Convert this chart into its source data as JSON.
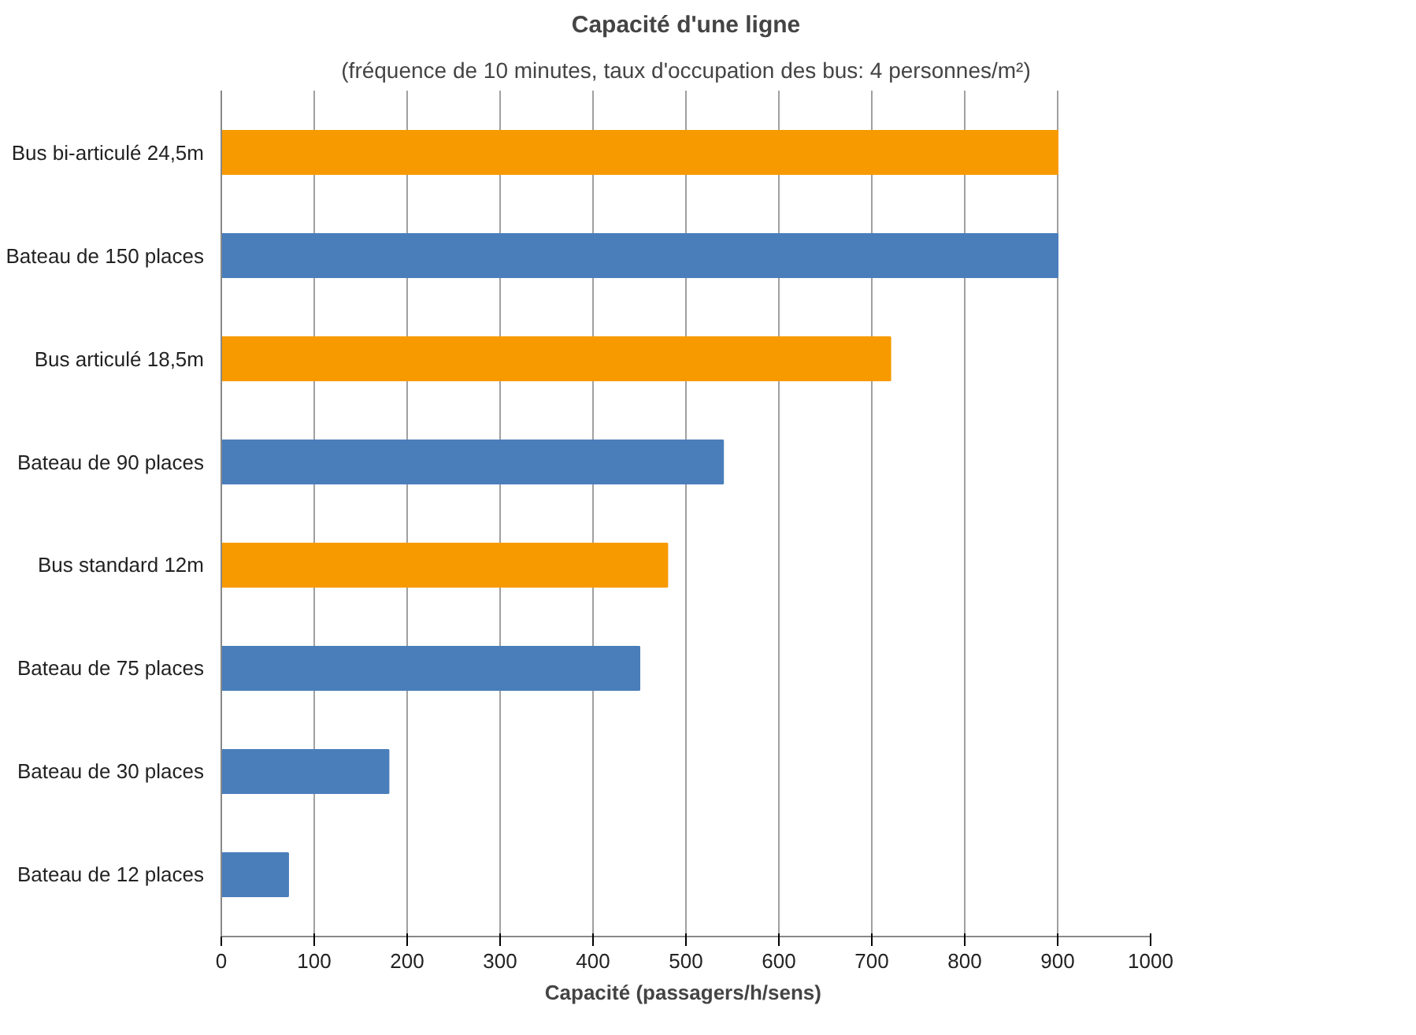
{
  "chart_data": {
    "type": "bar",
    "orientation": "horizontal",
    "title": "Capacité d'une ligne",
    "subtitle": "(fréquence de 10 minutes, taux d'occupation des bus: 4 personnes/m²)",
    "xlabel": "Capacité  (passagers/h/sens)",
    "categories": [
      "Bus bi-articulé 24,5m",
      "Bateau de 150 places",
      "Bus articulé 18,5m",
      "Bateau de 90 places",
      "Bus standard 12m",
      "Bateau de 75 places",
      "Bateau de 30 places",
      "Bateau de 12 places"
    ],
    "values": [
      900,
      900,
      720,
      540,
      480,
      450,
      180,
      72
    ],
    "colors": [
      "#f79a00",
      "#4a7ebb",
      "#f79a00",
      "#4a7ebb",
      "#f79a00",
      "#4a7ebb",
      "#4a7ebb",
      "#4a7ebb"
    ],
    "xlim": [
      0,
      1000
    ],
    "xticks": [
      0,
      100,
      200,
      300,
      400,
      500,
      600,
      700,
      800,
      900,
      1000
    ],
    "grid": "x"
  }
}
